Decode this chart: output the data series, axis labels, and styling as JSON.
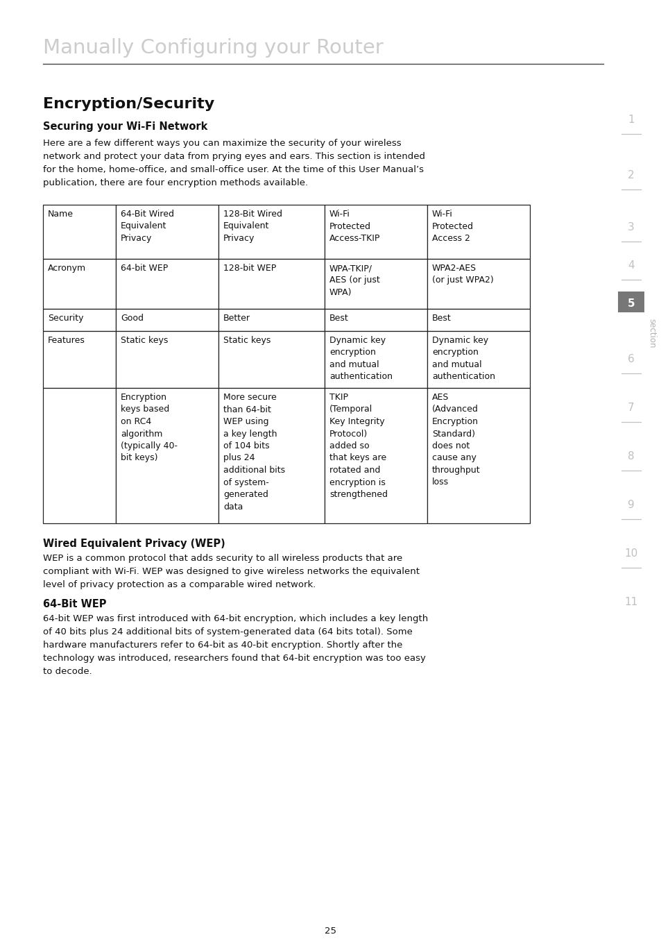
{
  "page_title": "Manually Configuring your Router",
  "page_title_color": "#cccccc",
  "section_title": "Encryption/Security",
  "subsection_title": "Securing your Wi-Fi Network",
  "intro_text": "Here are a few different ways you can maximize the security of your wireless network and protect your data from prying eyes and ears. This section is intended for the home, home-office, and small-office user. At the time of this User Manual’s publication, there are four encryption methods available.",
  "table_rows": [
    [
      "Name",
      "64-Bit Wired\nEquivalent\nPrivacy",
      "128-Bit Wired\nEquivalent\nPrivacy",
      "Wi-Fi\nProtected\nAccess-TKIP",
      "Wi-Fi\nProtected\nAccess 2"
    ],
    [
      "Acronym",
      "64-bit WEP",
      "128-bit WEP",
      "WPA-TKIP/\nAES (or just\nWPA)",
      "WPA2-AES\n(or just WPA2)"
    ],
    [
      "Security",
      "Good",
      "Better",
      "Best",
      "Best"
    ],
    [
      "Features",
      "Static keys",
      "Static keys",
      "Dynamic key\nencryption\nand mutual\nauthentication",
      "Dynamic key\nencryption\nand mutual\nauthentication"
    ],
    [
      "",
      "Encryption\nkeys based\non RC4\nalgorithm\n(typically 40-\nbit keys)",
      "More secure\nthan 64-bit\nWEP using\na key length\nof 104 bits\nplus 24\nadditional bits\nof system-\ngenerated\ndata",
      "TKIP\n(Temporal\nKey Integrity\nProtocol)\nadded so\nthat keys are\nrotated and\nencryption is\nstrengthened",
      "AES\n(Advanced\nEncryption\nStandard)\ndoes not\ncause any\nthroughput\nloss"
    ]
  ],
  "wep_title": "Wired Equivalent Privacy (WEP)",
  "wep_text": "WEP is a common protocol that adds security to all wireless products that are compliant with Wi-Fi. WEP was designed to give wireless networks the equivalent level of privacy protection as a comparable wired network.",
  "bit64_title": "64-Bit WEP",
  "bit64_text": "64-bit WEP was first introduced with 64-bit encryption, which includes a key length of 40 bits plus 24 additional bits of system-generated data (64 bits total). Some hardware manufacturers refer to 64-bit as 40-bit encryption. Shortly after the technology was introduced, researchers found that 64-bit encryption was too easy to decode.",
  "page_number": "25",
  "sidebar_numbers": [
    "1",
    "2",
    "3",
    "4",
    "5",
    "6",
    "7",
    "8",
    "9",
    "10",
    "11"
  ],
  "sidebar_highlight": "5",
  "bg_color": "#ffffff",
  "text_color": "#111111",
  "sidebar_text_color": "#c0c0c0",
  "sidebar_highlight_bg": "#777777",
  "line_color": "#444444"
}
